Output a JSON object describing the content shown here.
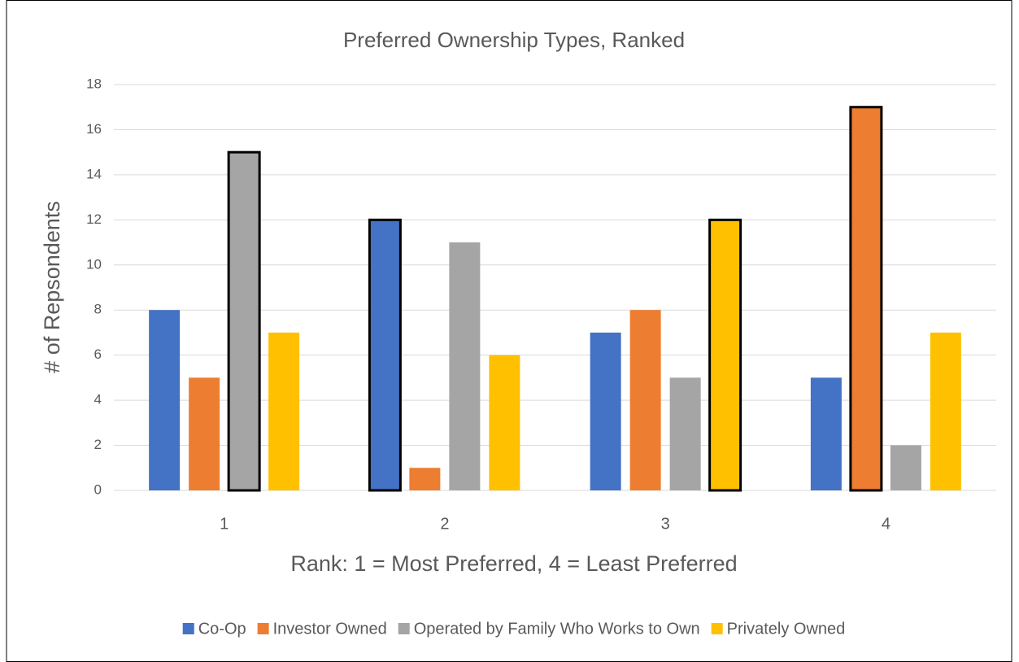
{
  "chart_data": {
    "type": "bar",
    "title": "Preferred Ownership Types, Ranked",
    "x_label": "Rank: 1 = Most Preferred, 4 = Least Preferred",
    "y_label": "# of Repsondents",
    "categories": [
      "1",
      "2",
      "3",
      "4"
    ],
    "series": [
      {
        "name": "Co-Op",
        "color": "#4472c4",
        "values": [
          8,
          12,
          7,
          5
        ]
      },
      {
        "name": "Investor Owned",
        "color": "#ed7d31",
        "values": [
          5,
          1,
          8,
          17
        ]
      },
      {
        "name": "Operated by Family Who Works to Own",
        "color": "#a5a5a5",
        "values": [
          15,
          11,
          5,
          2
        ]
      },
      {
        "name": "Privately Owned",
        "color": "#ffc000",
        "values": [
          7,
          6,
          12,
          7
        ]
      }
    ],
    "ylim": [
      0,
      18
    ],
    "yticks": [
      0,
      2,
      4,
      6,
      8,
      10,
      12,
      14,
      16,
      18
    ],
    "grid": true,
    "legend": "bottom",
    "outline_max": true
  }
}
